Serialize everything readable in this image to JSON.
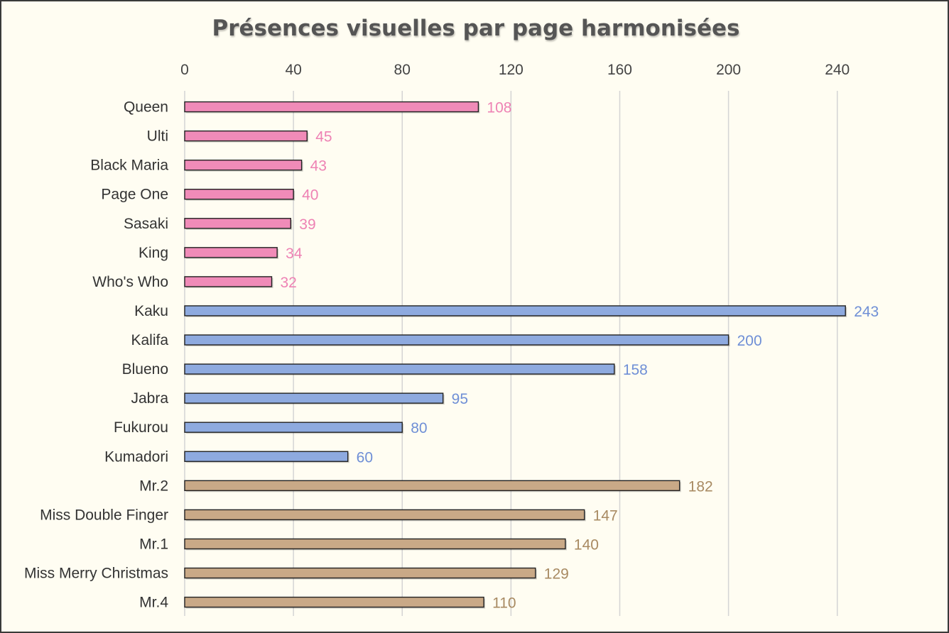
{
  "chart_data": {
    "type": "bar",
    "orientation": "horizontal",
    "title": "Présences visuelles par page harmonisées",
    "xlabel": "",
    "ylabel": "",
    "xlim": [
      0,
      260
    ],
    "x_ticks": [
      0,
      40,
      80,
      120,
      160,
      200,
      240
    ],
    "x_axis_position": "top",
    "grid": true,
    "legend": "none",
    "categories": [
      "Queen",
      "Ulti",
      "Black Maria",
      "Page One",
      "Sasaki",
      "King",
      "Who's Who",
      "Kaku",
      "Kalifa",
      "Blueno",
      "Jabra",
      "Fukurou",
      "Kumadori",
      "Mr.2",
      "Miss Double Finger",
      "Mr.1",
      "Miss Merry Christmas",
      "Mr.4"
    ],
    "values": [
      108,
      45,
      43,
      40,
      39,
      34,
      32,
      243,
      200,
      158,
      95,
      80,
      60,
      182,
      147,
      140,
      129,
      110
    ],
    "groups": [
      {
        "color": "#f08bb8",
        "label_color": "#ee82b4",
        "count": 7
      },
      {
        "color": "#8eaadf",
        "label_color": "#6f8fd6",
        "count": 6
      },
      {
        "color": "#c9a987",
        "label_color": "#a88a62",
        "count": 5
      }
    ]
  }
}
